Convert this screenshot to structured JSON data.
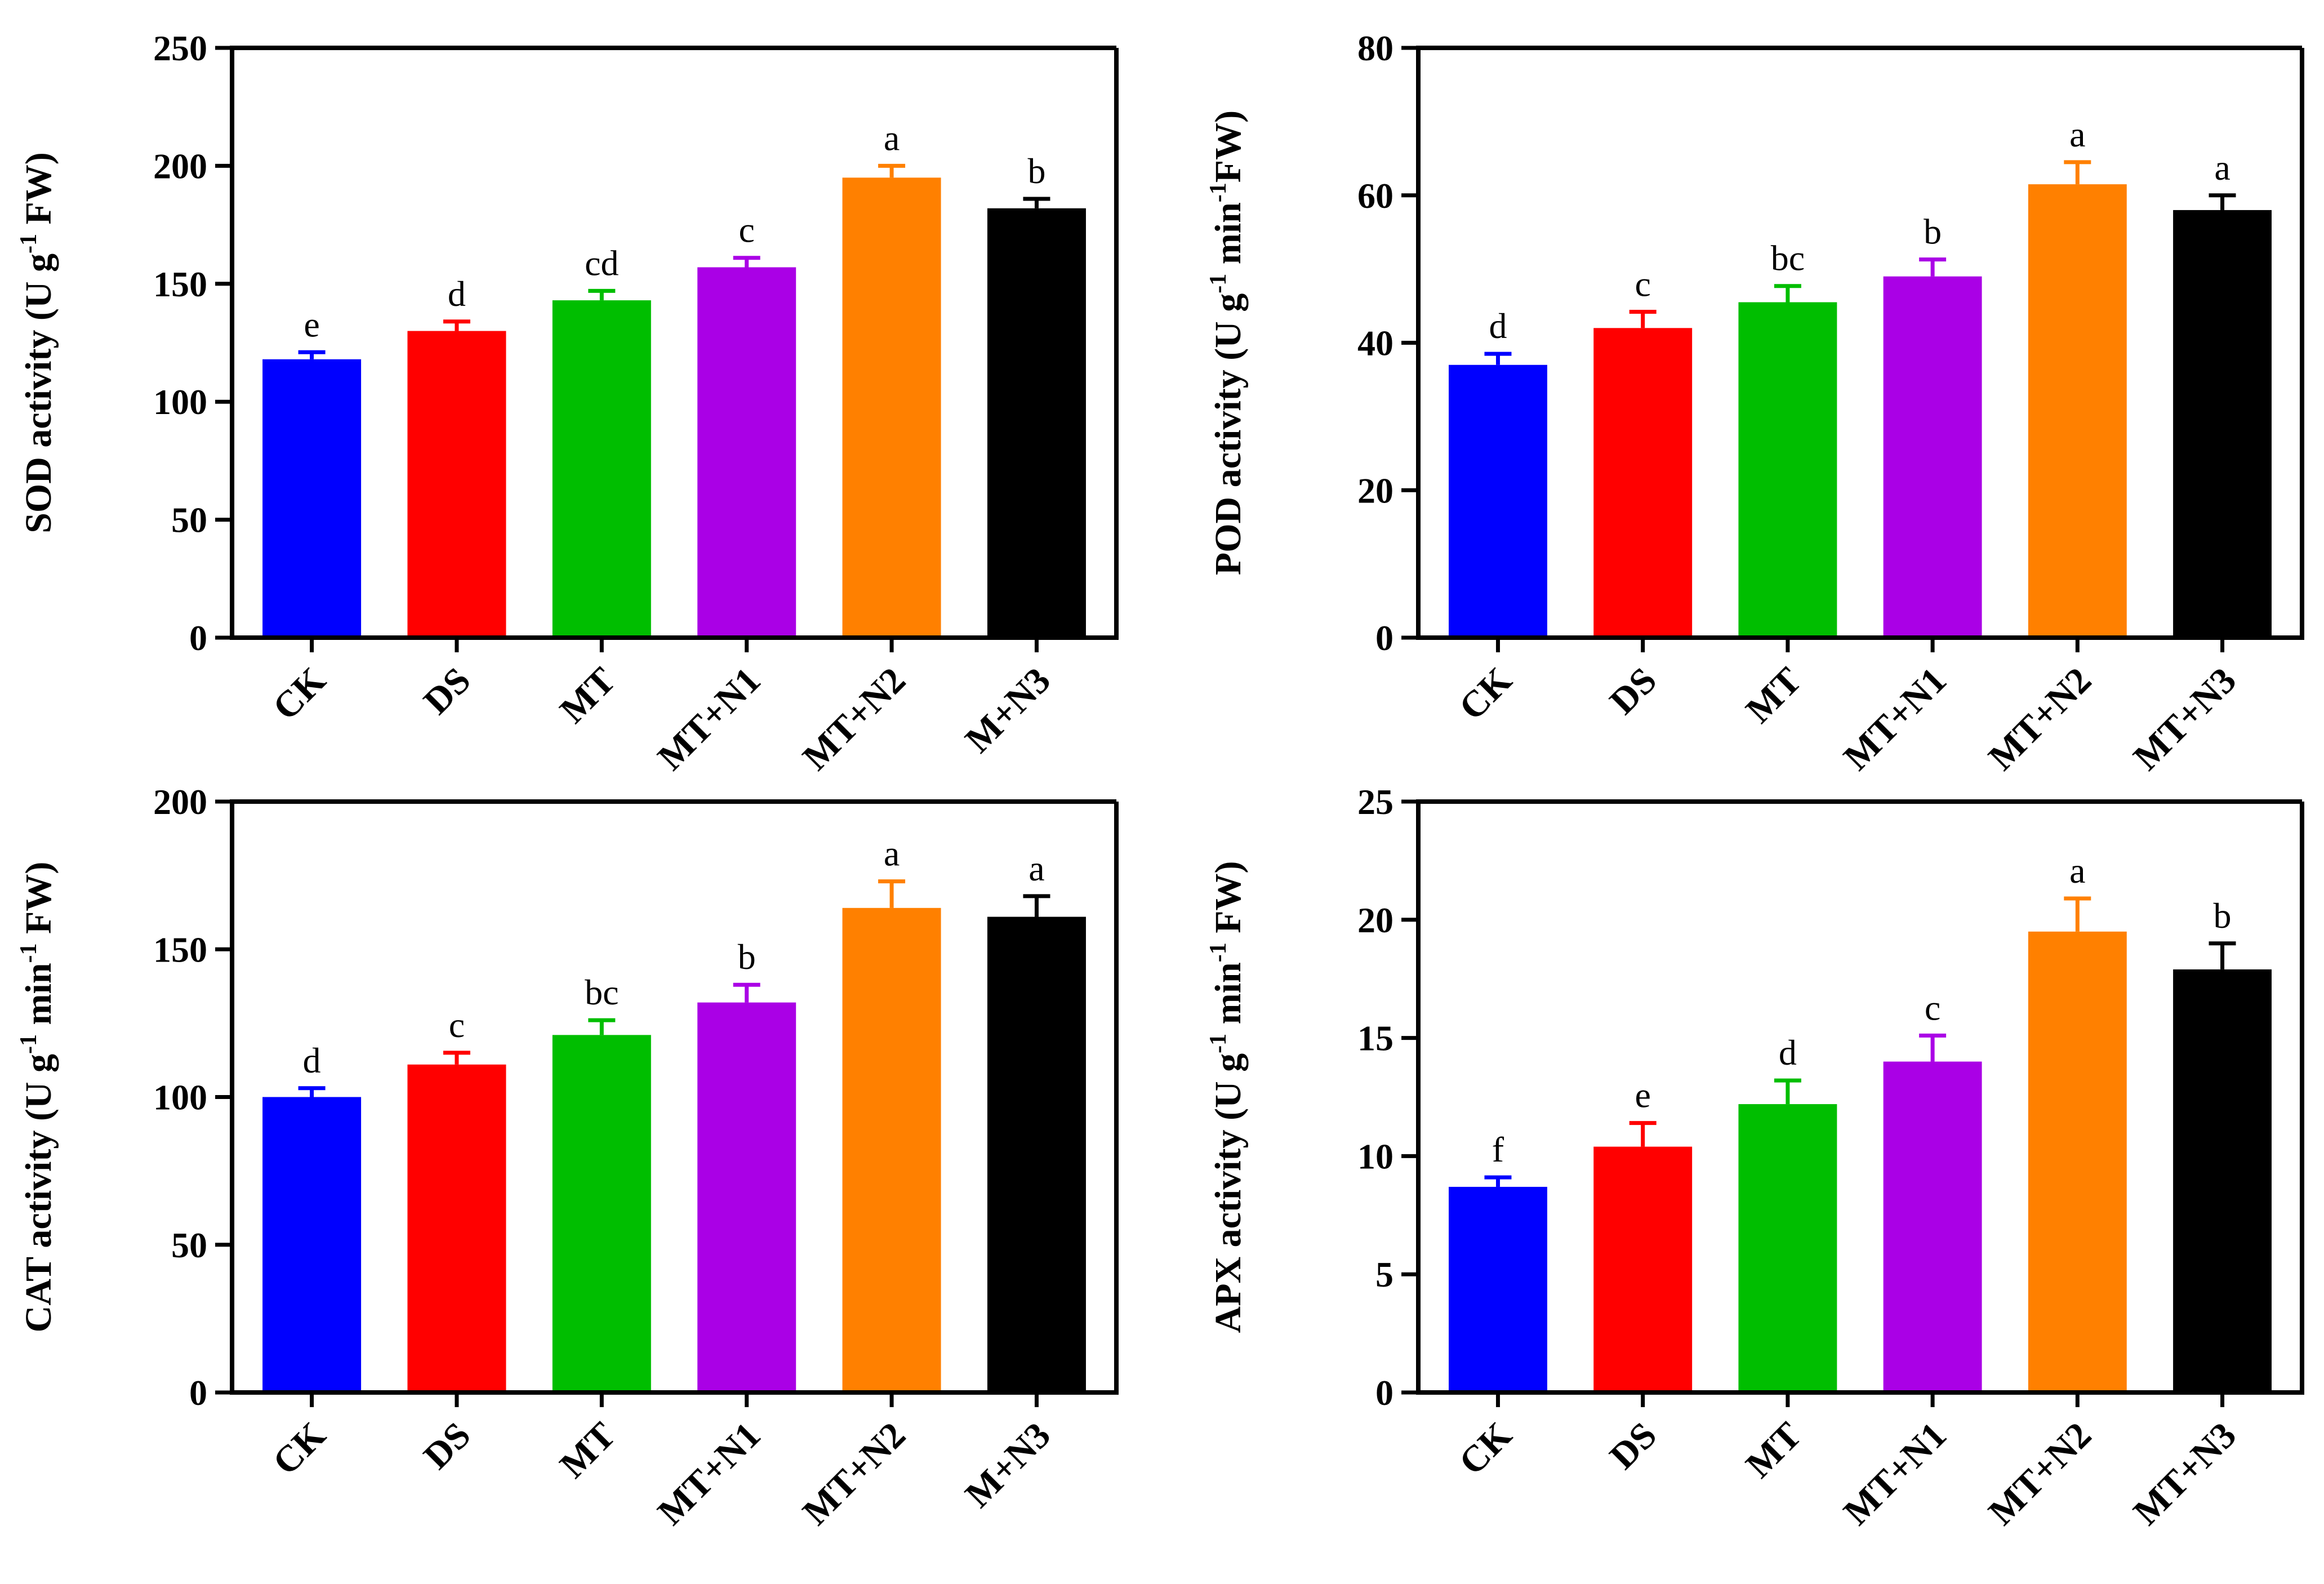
{
  "colors": [
    "#0000FF",
    "#FF0000",
    "#00BE00",
    "#AA00E6",
    "#FF8000",
    "#000000"
  ],
  "chart_data": [
    {
      "id": "sod",
      "type": "bar",
      "ylabel": {
        "pre": "SOD activity (U g",
        "sup": "-1",
        "post": " FW)"
      },
      "ylim": [
        0,
        250
      ],
      "yticks": [
        "0",
        "50",
        "100",
        "150",
        "200",
        "250"
      ],
      "categories": [
        "CK",
        "DS",
        "MT",
        "MT+N1",
        "MT+N2",
        "M+N3"
      ],
      "values": [
        118,
        130,
        143,
        157,
        195,
        182
      ],
      "errors": [
        3,
        4,
        4,
        4,
        5,
        4
      ],
      "letters": [
        "e",
        "d",
        "cd",
        "c",
        "a",
        "b"
      ],
      "show_xlabels": true
    },
    {
      "id": "pod",
      "type": "bar",
      "ylabel": {
        "pre": "POD activity (U g",
        "sup": "-1",
        "mid": " min",
        "sup2": "-1",
        "post": "FW)"
      },
      "ylim": [
        0,
        80
      ],
      "yticks": [
        "0",
        "20",
        "40",
        "60",
        "80"
      ],
      "categories": [
        "CK",
        "DS",
        "MT",
        "MT+N1",
        "MT+N2",
        "MT+N3"
      ],
      "values": [
        37,
        42,
        45.5,
        49,
        61.5,
        58
      ],
      "errors": [
        1.5,
        2.2,
        2.2,
        2.3,
        3.0,
        2.0
      ],
      "letters": [
        "d",
        "c",
        "bc",
        "b",
        "a",
        "a"
      ],
      "show_xlabels": true
    },
    {
      "id": "cat",
      "type": "bar",
      "ylabel": {
        "pre": "CAT activity (U g",
        "sup": "-1",
        "mid": " min",
        "sup2": "-1",
        "post": " FW)"
      },
      "ylim": [
        0,
        200
      ],
      "yticks": [
        "0",
        "50",
        "100",
        "150",
        "200"
      ],
      "categories": [
        "CK",
        "DS",
        "MT",
        "MT+N1",
        "MT+N2",
        "M+N3"
      ],
      "values": [
        100,
        111,
        121,
        132,
        164,
        161
      ],
      "errors": [
        3,
        4,
        5,
        6,
        9,
        7
      ],
      "letters": [
        "d",
        "c",
        "bc",
        "b",
        "a",
        "a"
      ],
      "show_xlabels": true
    },
    {
      "id": "apx",
      "type": "bar",
      "ylabel": {
        "pre": "APX activity (U g",
        "sup": "-1",
        "mid": " min",
        "sup2": "-1",
        "post": " FW)"
      },
      "ylim": [
        0,
        25
      ],
      "yticks": [
        "0",
        "5",
        "10",
        "15",
        "20",
        "25"
      ],
      "categories": [
        "CK",
        "DS",
        "MT",
        "MT+N1",
        "MT+N2",
        "MT+N3"
      ],
      "values": [
        8.7,
        10.4,
        12.2,
        14.0,
        19.5,
        17.9
      ],
      "errors": [
        0.4,
        1.0,
        1.0,
        1.1,
        1.4,
        1.1
      ],
      "letters": [
        "f",
        "e",
        "d",
        "c",
        "a",
        "b"
      ],
      "show_xlabels": true
    }
  ]
}
